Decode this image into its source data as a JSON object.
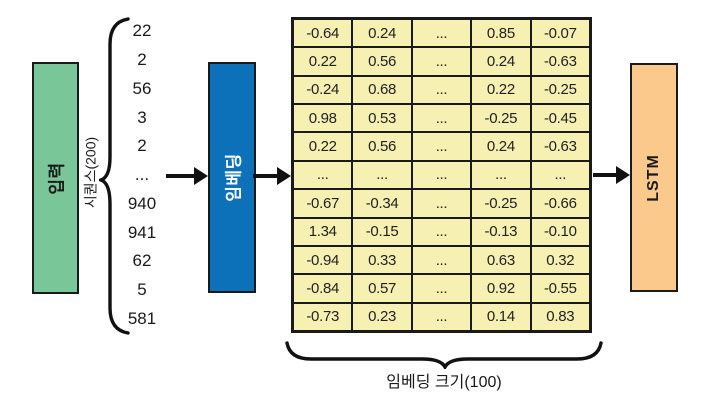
{
  "colors": {
    "background": "#ffffff",
    "input_box": "#79c698",
    "embedding_box": "#0d71b9",
    "matrix_cell": "#f7f0b3",
    "lstm_box": "#fbc98b",
    "line": "#1a1a1a"
  },
  "input": {
    "label": "입력"
  },
  "sequence": {
    "label": "시퀀스(200)",
    "values": [
      "22",
      "2",
      "56",
      "3",
      "2",
      "...",
      "940",
      "941",
      "62",
      "5",
      "581"
    ]
  },
  "embedding": {
    "label": "임베딩"
  },
  "matrix": {
    "rows": [
      [
        "-0.64",
        "0.24",
        "...",
        "0.85",
        "-0.07"
      ],
      [
        "0.22",
        "0.56",
        "...",
        "0.24",
        "-0.63"
      ],
      [
        "-0.24",
        "0.68",
        "...",
        "0.22",
        "-0.25"
      ],
      [
        "0.98",
        "0.53",
        "...",
        "-0.25",
        "-0.45"
      ],
      [
        "0.22",
        "0.56",
        "...",
        "0.24",
        "-0.63"
      ],
      [
        "...",
        "...",
        "...",
        "...",
        "..."
      ],
      [
        "-0.67",
        "-0.34",
        "...",
        "-0.25",
        "-0.66"
      ],
      [
        "1.34",
        "-0.15",
        "...",
        "-0.13",
        "-0.10"
      ],
      [
        "-0.94",
        "0.33",
        "...",
        "0.63",
        "0.32"
      ],
      [
        "-0.84",
        "0.57",
        "...",
        "0.92",
        "-0.55"
      ],
      [
        "-0.73",
        "0.23",
        "...",
        "0.14",
        "0.83"
      ]
    ],
    "size_label": "임베딩 크기(100)"
  },
  "lstm": {
    "label": "LSTM"
  }
}
